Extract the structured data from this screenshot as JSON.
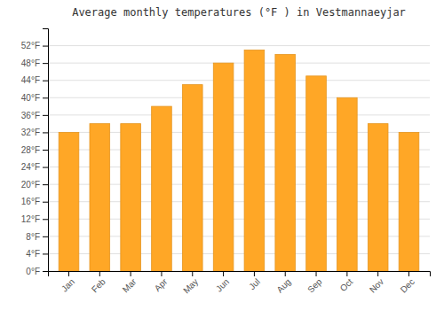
{
  "chart_data": {
    "type": "bar",
    "title": "Average monthly temperatures (°F ) in Vestmannaeyjar",
    "categories": [
      "Jan",
      "Feb",
      "Mar",
      "Apr",
      "May",
      "Jun",
      "Jul",
      "Aug",
      "Sep",
      "Oct",
      "Nov",
      "Dec"
    ],
    "values": [
      32,
      34,
      34,
      38,
      43,
      48,
      51,
      50,
      45,
      40,
      34,
      32
    ],
    "color": "#FFA726",
    "ylim": [
      0,
      56
    ],
    "yticks": [
      {
        "value": 0,
        "label": "0°F"
      },
      {
        "value": 4,
        "label": "4°F"
      },
      {
        "value": 8,
        "label": "8°F"
      },
      {
        "value": 12,
        "label": "12°F"
      },
      {
        "value": 16,
        "label": "16°F"
      },
      {
        "value": 20,
        "label": "20°F"
      },
      {
        "value": 24,
        "label": "24°F"
      },
      {
        "value": 28,
        "label": "28°F"
      },
      {
        "value": 32,
        "label": "32°F"
      },
      {
        "value": 36,
        "label": "36°F"
      },
      {
        "value": 40,
        "label": "40°F"
      },
      {
        "value": 44,
        "label": "44°F"
      },
      {
        "value": 48,
        "label": "48°F"
      },
      {
        "value": 52,
        "label": "52°F"
      }
    ],
    "grid": true
  }
}
